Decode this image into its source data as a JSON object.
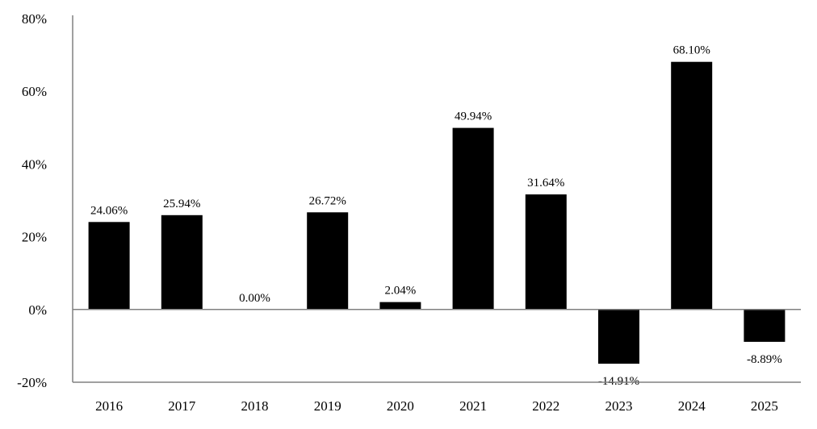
{
  "chart_data": {
    "type": "bar",
    "title": "",
    "xlabel": "",
    "ylabel": "",
    "categories": [
      "2016",
      "2017",
      "2018",
      "2019",
      "2020",
      "2021",
      "2022",
      "2023",
      "2024",
      "2025"
    ],
    "values": [
      24.06,
      25.94,
      0.0,
      26.72,
      2.04,
      49.94,
      31.64,
      -14.91,
      68.1,
      -8.89
    ],
    "value_labels": [
      "24.06%",
      "25.94%",
      "0.00%",
      "26.72%",
      "2.04%",
      "49.94%",
      "31.64%",
      "-14.91%",
      "68.10%",
      "-8.89%"
    ],
    "ylim": [
      -20,
      80
    ],
    "yticks": [
      -20,
      0,
      20,
      40,
      60,
      80
    ],
    "ytick_labels": [
      "-20%",
      "0%",
      "20%",
      "40%",
      "60%",
      "80%"
    ],
    "grid": false,
    "legend": "none",
    "colors": {
      "bar": "#000000",
      "axis": "#808080",
      "text": "#000000"
    }
  }
}
